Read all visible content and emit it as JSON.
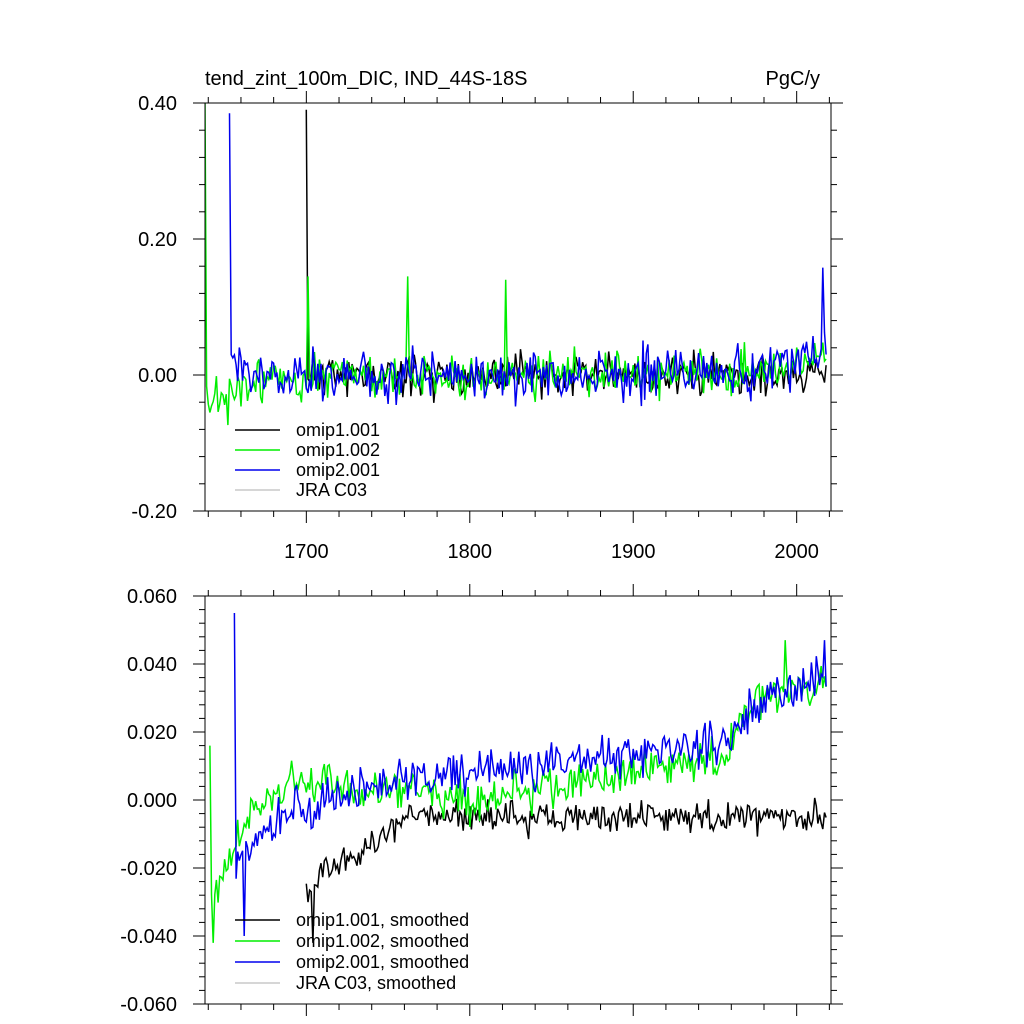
{
  "figure": {
    "title": "tend_zint_100m_DIC, IND_44S-18S",
    "units": "PgC/y"
  },
  "chart_data": [
    {
      "type": "line",
      "title": "tend_zint_100m_DIC, IND_44S-18S",
      "units": "PgC/y",
      "xlabel": "",
      "ylabel": "",
      "xlim": [
        1638,
        2021
      ],
      "ylim": [
        -0.2,
        0.4
      ],
      "xticks": [
        1700,
        1800,
        1900,
        2000
      ],
      "xtick_labels": [
        "1700",
        "1800",
        "1900",
        "2000"
      ],
      "yticks": [
        -0.2,
        0.0,
        0.2,
        0.4
      ],
      "ytick_labels": [
        "-0.20",
        "0.00",
        "0.20",
        "0.40"
      ],
      "legend_position": "bottom-left",
      "series": [
        {
          "name": "omip1.001",
          "color": "#000000",
          "start_year": 1700,
          "spikes": [
            [
              1700,
              0.39
            ]
          ],
          "trend": [
            [
              1700,
              0.0
            ],
            [
              2018,
              0.0
            ]
          ],
          "amplitude": 0.045,
          "seed": 11
        },
        {
          "name": "omip1.002",
          "color": "#00ee00",
          "start_year": 1638,
          "spikes": [
            [
              1638,
              0.4
            ],
            [
              1701,
              0.145
            ],
            [
              1762,
              0.145
            ],
            [
              1822,
              0.14
            ]
          ],
          "trend": [
            [
              1638,
              -0.05
            ],
            [
              1680,
              0.0
            ],
            [
              1960,
              0.0
            ],
            [
              2018,
              0.03
            ]
          ],
          "amplitude": 0.05,
          "seed": 23
        },
        {
          "name": "omip2.001",
          "color": "#0000ee",
          "start_year": 1653,
          "spikes": [
            [
              1653,
              0.385
            ],
            [
              2016,
              0.158
            ]
          ],
          "trend": [
            [
              1653,
              0.0
            ],
            [
              1960,
              0.0
            ],
            [
              2018,
              0.03
            ]
          ],
          "amplitude": 0.055,
          "seed": 37
        },
        {
          "name": "JRA C03",
          "color": "#c8c8c8",
          "start_year": null,
          "spikes": [],
          "trend": [],
          "amplitude": 0,
          "seed": 0
        }
      ]
    },
    {
      "type": "line",
      "title": "",
      "xlabel": "",
      "ylabel": "",
      "xlim": [
        1638,
        2021
      ],
      "ylim": [
        -0.06,
        0.06
      ],
      "xticks": [
        1700,
        1800,
        1900,
        2000
      ],
      "xtick_labels": [],
      "yticks": [
        -0.06,
        -0.04,
        -0.02,
        0.0,
        0.02,
        0.04,
        0.06
      ],
      "ytick_labels": [
        "-0.060",
        "-0.040",
        "-0.020",
        "0.000",
        "0.020",
        "0.040",
        "0.060"
      ],
      "legend_position": "bottom-left",
      "series": [
        {
          "name": "omip1.001, smoothed",
          "color": "#000000",
          "start_year": 1700,
          "spikes": [
            [
              1704,
              -0.042
            ]
          ],
          "trend": [
            [
              1700,
              -0.028
            ],
            [
              1715,
              -0.02
            ],
            [
              1750,
              -0.01
            ],
            [
              1765,
              -0.005
            ]
          ],
          "amplitude": 0.007,
          "seed": 5
        },
        {
          "name": "omip1.002, smoothed",
          "color": "#00ee00",
          "start_year": 1641,
          "spikes": [
            [
              1641,
              0.016
            ],
            [
              1643,
              -0.042
            ],
            [
              1993,
              0.047
            ]
          ],
          "trend": [
            [
              1641,
              -0.03
            ],
            [
              1665,
              -0.005
            ],
            [
              1690,
              0.005
            ],
            [
              1800,
              0.0
            ],
            [
              1900,
              0.008
            ],
            [
              1955,
              0.012
            ],
            [
              1975,
              0.03
            ],
            [
              2018,
              0.035
            ]
          ],
          "amplitude": 0.009,
          "seed": 41
        },
        {
          "name": "omip2.001, smoothed",
          "color": "#0000ee",
          "start_year": 1656,
          "spikes": [
            [
              1656,
              0.055
            ],
            [
              1662,
              -0.04
            ],
            [
              2017,
              0.047
            ]
          ],
          "trend": [
            [
              1656,
              -0.02
            ],
            [
              1680,
              -0.005
            ],
            [
              1750,
              0.005
            ],
            [
              1850,
              0.01
            ],
            [
              1920,
              0.015
            ],
            [
              1960,
              0.018
            ],
            [
              1980,
              0.03
            ],
            [
              2018,
              0.035
            ]
          ],
          "amplitude": 0.01,
          "seed": 59
        },
        {
          "name": "JRA C03, smoothed",
          "color": "#c8c8c8",
          "start_year": null,
          "spikes": [],
          "trend": [],
          "amplitude": 0,
          "seed": 0
        }
      ]
    }
  ]
}
